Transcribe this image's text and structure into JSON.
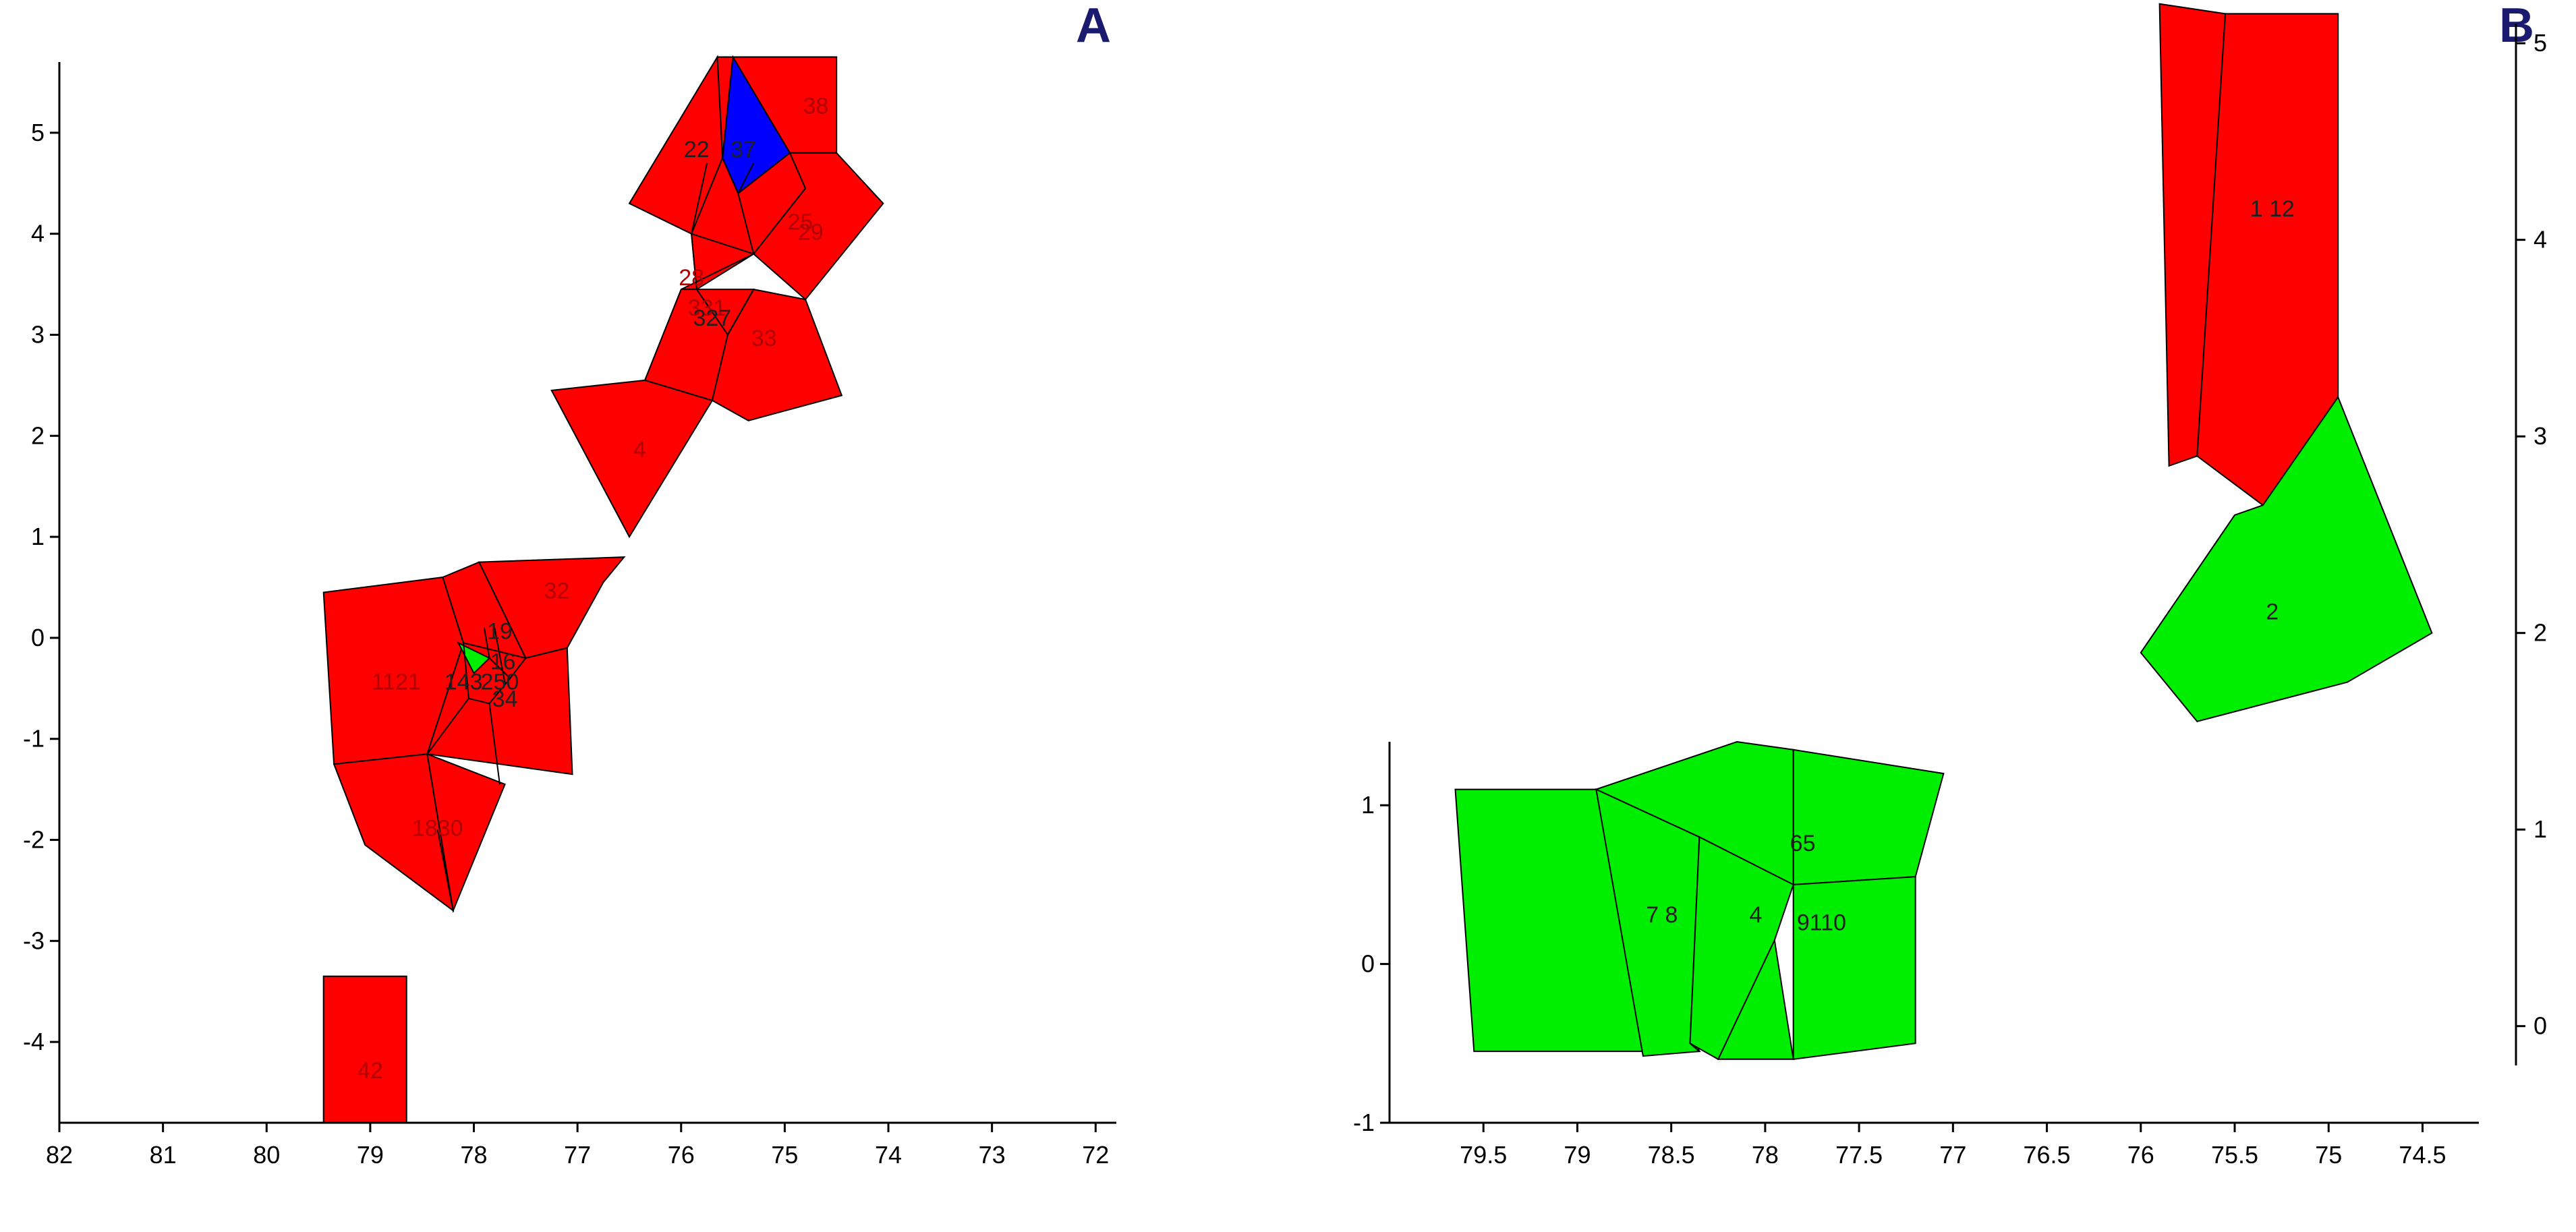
{
  "colors": {
    "red": "#ff0000",
    "green": "#00ee00",
    "blue": "#0000ff",
    "panel_letter": "#1a1a6e"
  },
  "chart_data": [
    {
      "type": "voronoi",
      "panel": "A",
      "x_reversed": true,
      "xlim": [
        82,
        71.8
      ],
      "ylim": [
        -4.8,
        5.7
      ],
      "x_ticks": [
        "82",
        "81",
        "80",
        "79",
        "78",
        "77",
        "76",
        "75",
        "74",
        "73",
        "72"
      ],
      "y_ticks": [
        "5",
        "4",
        "3",
        "2",
        "1",
        "0",
        "-1",
        "-2",
        "-3",
        "-4"
      ],
      "y_axis_side": "left",
      "cells": [
        {
          "color": "red",
          "points": [
            [
              75.65,
              5.75
            ],
            [
              76.5,
              4.3
            ],
            [
              75.9,
              4.0
            ],
            [
              75.6,
              4.75
            ]
          ]
        },
        {
          "color": "red",
          "points": [
            [
              75.6,
              4.75
            ],
            [
              75.5,
              5.75
            ],
            [
              75.65,
              5.75
            ]
          ]
        },
        {
          "color": "blue",
          "points": [
            [
              75.5,
              5.75
            ],
            [
              74.95,
              4.8
            ],
            [
              75.45,
              4.4
            ],
            [
              75.6,
              4.75
            ]
          ]
        },
        {
          "color": "red",
          "points": [
            [
              75.5,
              5.75
            ],
            [
              74.5,
              5.75
            ],
            [
              74.5,
              4.8
            ],
            [
              74.95,
              4.8
            ]
          ]
        },
        {
          "color": "red",
          "points": [
            [
              75.9,
              4.0
            ],
            [
              75.6,
              4.75
            ],
            [
              75.45,
              4.4
            ],
            [
              74.95,
              4.8
            ],
            [
              74.8,
              4.45
            ],
            [
              75.3,
              3.8
            ],
            [
              75.85,
              3.45
            ]
          ]
        },
        {
          "color": "red",
          "points": [
            [
              74.95,
              4.8
            ],
            [
              74.5,
              4.8
            ],
            [
              74.05,
              4.3
            ],
            [
              74.8,
              3.35
            ],
            [
              75.3,
              3.8
            ],
            [
              74.8,
              4.45
            ]
          ]
        },
        {
          "color": "red",
          "points": [
            [
              75.9,
              4.0
            ],
            [
              75.85,
              3.45
            ],
            [
              76.0,
              3.45
            ],
            [
              75.3,
              3.8
            ]
          ]
        },
        {
          "color": "red",
          "points": [
            [
              76.0,
              3.45
            ],
            [
              76.35,
              2.55
            ],
            [
              75.7,
              2.35
            ],
            [
              75.55,
              3.0
            ],
            [
              75.3,
              3.45
            ]
          ]
        },
        {
          "color": "red",
          "points": [
            [
              75.55,
              3.0
            ],
            [
              75.7,
              2.35
            ],
            [
              75.35,
              2.15
            ],
            [
              74.45,
              2.4
            ],
            [
              74.8,
              3.35
            ],
            [
              75.3,
              3.45
            ]
          ]
        },
        {
          "color": "red",
          "points": [
            [
              76.35,
              2.55
            ],
            [
              75.7,
              2.35
            ],
            [
              76.5,
              1.0
            ],
            [
              77.25,
              2.45
            ]
          ]
        },
        {
          "color": "red",
          "points": [
            [
              77.95,
              0.75
            ],
            [
              76.55,
              0.8
            ],
            [
              76.75,
              0.55
            ],
            [
              77.1,
              -0.1
            ],
            [
              77.5,
              -0.2
            ]
          ]
        },
        {
          "color": "red",
          "points": [
            [
              79.45,
              0.45
            ],
            [
              78.3,
              0.6
            ],
            [
              78.1,
              -0.05
            ],
            [
              78.45,
              -1.15
            ],
            [
              79.35,
              -1.25
            ]
          ]
        },
        {
          "color": "red",
          "points": [
            [
              78.3,
              0.6
            ],
            [
              77.95,
              0.75
            ],
            [
              77.5,
              -0.2
            ],
            [
              77.1,
              -0.1
            ],
            [
              77.05,
              -1.35
            ],
            [
              78.45,
              -1.15
            ],
            [
              78.1,
              -0.05
            ]
          ]
        },
        {
          "color": "green",
          "points": [
            [
              78.15,
              -0.05
            ],
            [
              77.85,
              -0.2
            ],
            [
              78.0,
              -0.35
            ]
          ]
        },
        {
          "color": "red",
          "points": [
            [
              79.35,
              -1.25
            ],
            [
              78.45,
              -1.15
            ],
            [
              78.2,
              -2.7
            ],
            [
              79.05,
              -2.05
            ]
          ]
        },
        {
          "color": "red",
          "points": [
            [
              78.45,
              -1.15
            ],
            [
              77.7,
              -1.45
            ],
            [
              78.2,
              -2.7
            ]
          ]
        },
        {
          "color": "red",
          "points": [
            [
              79.45,
              -3.35
            ],
            [
              78.65,
              -3.35
            ],
            [
              78.65,
              -4.8
            ],
            [
              79.45,
              -4.8
            ]
          ]
        }
      ],
      "edges": [
        [
          [
            75.6,
            4.75
          ],
          [
            75.45,
            4.4
          ]
        ],
        [
          [
            75.45,
            4.4
          ],
          [
            75.3,
            3.8
          ]
        ],
        [
          [
            75.85,
            3.45
          ],
          [
            75.55,
            3.0
          ]
        ],
        [
          [
            75.3,
            3.45
          ],
          [
            75.55,
            3.0
          ]
        ],
        [
          [
            75.9,
            4.0
          ],
          [
            75.75,
            4.7
          ]
        ],
        [
          [
            75.45,
            4.4
          ],
          [
            75.3,
            4.7
          ]
        ],
        [
          [
            77.5,
            -0.2
          ],
          [
            78.1,
            -0.05
          ]
        ],
        [
          [
            78.1,
            -0.05
          ],
          [
            78.05,
            -0.6
          ]
        ],
        [
          [
            78.05,
            -0.6
          ],
          [
            78.45,
            -1.15
          ]
        ],
        [
          [
            77.85,
            -0.2
          ],
          [
            77.65,
            -0.4
          ]
        ],
        [
          [
            77.65,
            -0.4
          ],
          [
            77.5,
            -0.2
          ]
        ],
        [
          [
            77.65,
            -0.4
          ],
          [
            77.85,
            -0.65
          ]
        ],
        [
          [
            78.05,
            -0.6
          ],
          [
            77.85,
            -0.65
          ]
        ],
        [
          [
            77.85,
            -0.65
          ],
          [
            77.75,
            -1.45
          ]
        ],
        [
          [
            78.2,
            -2.7
          ],
          [
            78.35,
            -1.9
          ]
        ],
        [
          [
            77.9,
            0.1
          ],
          [
            77.85,
            -0.2
          ]
        ],
        [
          [
            77.8,
            0.1
          ],
          [
            77.7,
            -0.45
          ]
        ]
      ],
      "labels": [
        {
          "text": "38",
          "x": 74.7,
          "y": 5.25,
          "color": "red"
        },
        {
          "text": "22",
          "x": 75.85,
          "y": 4.82,
          "color": "black"
        },
        {
          "text": "37",
          "x": 75.4,
          "y": 4.82,
          "color": "black"
        },
        {
          "text": "25",
          "x": 74.85,
          "y": 4.1,
          "color": "red"
        },
        {
          "text": "29",
          "x": 74.75,
          "y": 4.0,
          "color": "red"
        },
        {
          "text": "28",
          "x": 75.9,
          "y": 3.55,
          "color": "red"
        },
        {
          "text": "331",
          "x": 75.75,
          "y": 3.25,
          "color": "red"
        },
        {
          "text": "327",
          "x": 75.7,
          "y": 3.15,
          "color": "black"
        },
        {
          "text": "33",
          "x": 75.2,
          "y": 2.95,
          "color": "red"
        },
        {
          "text": "4",
          "x": 76.4,
          "y": 1.85,
          "color": "red"
        },
        {
          "text": "32",
          "x": 77.2,
          "y": 0.45,
          "color": "red"
        },
        {
          "text": "19",
          "x": 77.75,
          "y": 0.05,
          "color": "black"
        },
        {
          "text": "16",
          "x": 77.72,
          "y": -0.25,
          "color": "black"
        },
        {
          "text": "1121",
          "x": 78.75,
          "y": -0.45,
          "color": "red"
        },
        {
          "text": "143",
          "x": 78.1,
          "y": -0.45,
          "color": "black"
        },
        {
          "text": "250",
          "x": 77.75,
          "y": -0.45,
          "color": "black"
        },
        {
          "text": "34",
          "x": 77.7,
          "y": -0.62,
          "color": "black"
        },
        {
          "text": "1830",
          "x": 78.35,
          "y": -1.9,
          "color": "red"
        },
        {
          "text": "42",
          "x": 79.0,
          "y": -4.3,
          "color": "red"
        }
      ]
    },
    {
      "type": "voronoi",
      "panel": "B",
      "x_reversed": true,
      "bottom_panel": {
        "xlim": [
          80.0,
          74.2
        ],
        "ylim": [
          -1,
          1.4
        ],
        "x_ticks": [
          "79.5",
          "79",
          "78.5",
          "78",
          "77.5",
          "77",
          "76.5",
          "76",
          "75.5",
          "75",
          "74.5"
        ],
        "y_ticks": [
          "1",
          "0",
          "-1"
        ],
        "y_axis_side": "left",
        "cells": [
          {
            "color": "green",
            "points": [
              [
                79.65,
                1.1
              ],
              [
                78.9,
                1.1
              ],
              [
                78.35,
                -0.55
              ],
              [
                79.55,
                -0.55
              ]
            ]
          },
          {
            "color": "green",
            "points": [
              [
                78.9,
                1.1
              ],
              [
                78.15,
                1.4
              ],
              [
                77.85,
                1.35
              ],
              [
                77.85,
                0.5
              ],
              [
                78.35,
                0.8
              ]
            ]
          },
          {
            "color": "green",
            "points": [
              [
                77.85,
                1.35
              ],
              [
                77.05,
                1.2
              ],
              [
                77.2,
                0.55
              ],
              [
                77.85,
                0.5
              ]
            ]
          },
          {
            "color": "green",
            "points": [
              [
                78.9,
                1.1
              ],
              [
                78.35,
                0.8
              ],
              [
                78.4,
                -0.5
              ],
              [
                78.35,
                -0.55
              ],
              [
                78.65,
                -0.58
              ]
            ]
          },
          {
            "color": "green",
            "points": [
              [
                78.35,
                0.8
              ],
              [
                77.85,
                0.5
              ],
              [
                77.95,
                0.15
              ],
              [
                78.25,
                -0.6
              ],
              [
                78.4,
                -0.5
              ]
            ]
          },
          {
            "color": "green",
            "points": [
              [
                77.95,
                0.15
              ],
              [
                77.85,
                -0.6
              ],
              [
                78.25,
                -0.6
              ]
            ]
          },
          {
            "color": "green",
            "points": [
              [
                77.85,
                0.5
              ],
              [
                77.2,
                0.55
              ],
              [
                77.2,
                -0.5
              ],
              [
                77.85,
                -0.6
              ]
            ]
          }
        ],
        "labels": [
          {
            "text": "65",
            "x": 77.8,
            "y": 0.75
          },
          {
            "text": "7 8",
            "x": 78.55,
            "y": 0.3
          },
          {
            "text": "4",
            "x": 78.05,
            "y": 0.3
          },
          {
            "text": "9110",
            "x": 77.7,
            "y": 0.25
          }
        ]
      },
      "top_panel": {
        "ylim": [
          -0.2,
          5.1
        ],
        "y_ticks": [
          "5",
          "4",
          "3",
          "2",
          "1",
          "0"
        ],
        "y_axis_side": "right",
        "cells": [
          {
            "color": "red",
            "points": [
              [
                75.9,
                5.2
              ],
              [
                75.55,
                5.15
              ],
              [
                75.7,
                2.9
              ],
              [
                75.85,
                2.85
              ]
            ]
          },
          {
            "color": "red",
            "points": [
              [
                75.55,
                5.15
              ],
              [
                74.95,
                5.15
              ],
              [
                74.95,
                3.2
              ],
              [
                75.35,
                2.65
              ],
              [
                75.7,
                2.9
              ]
            ]
          },
          {
            "color": "green",
            "points": [
              [
                75.35,
                2.65
              ],
              [
                74.95,
                3.2
              ],
              [
                74.45,
                2.0
              ],
              [
                74.9,
                1.75
              ],
              [
                75.7,
                1.55
              ],
              [
                76.0,
                1.9
              ],
              [
                75.5,
                2.6
              ]
            ]
          }
        ],
        "labels": [
          {
            "text": "1 12",
            "x": 75.3,
            "y": 4.15
          },
          {
            "text": "2",
            "x": 75.3,
            "y": 2.1
          }
        ]
      }
    }
  ]
}
